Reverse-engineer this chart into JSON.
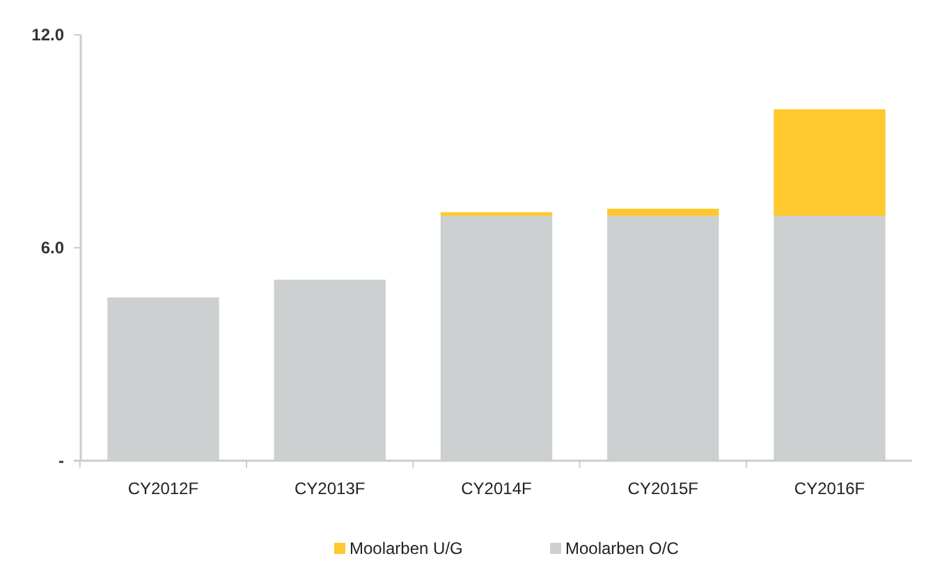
{
  "chart_data": {
    "type": "bar",
    "stacked": true,
    "categories": [
      "CY2012F",
      "CY2013F",
      "CY2014F",
      "CY2015F",
      "CY2016F"
    ],
    "series": [
      {
        "name": "Moolarben O/C",
        "color": "#cdd0d1",
        "values": [
          4.6,
          5.1,
          6.9,
          6.9,
          6.9
        ]
      },
      {
        "name": "Moolarben U/G",
        "color": "#ffc82c",
        "values": [
          0,
          0,
          0.1,
          0.2,
          3.0
        ]
      }
    ],
    "ylim": [
      0,
      12
    ],
    "yticks": [
      {
        "value": 0,
        "label": "-"
      },
      {
        "value": 6,
        "label": "6.0"
      },
      {
        "value": 12,
        "label": "12.0"
      }
    ],
    "grid": false,
    "legend": "bottom"
  }
}
